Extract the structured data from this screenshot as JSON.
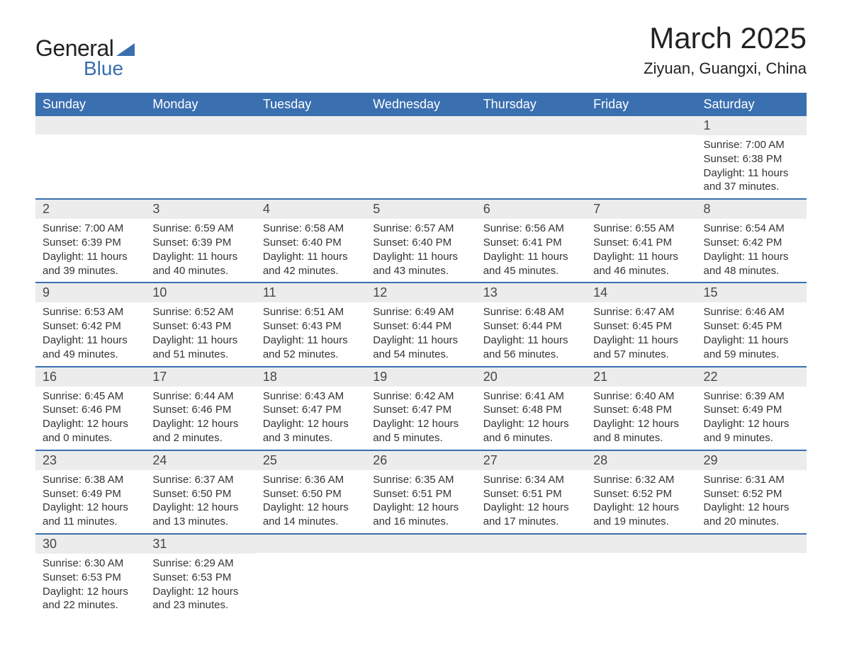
{
  "logo": {
    "text1": "General",
    "text2": "Blue",
    "shape_color": "#3a6fb0"
  },
  "title": "March 2025",
  "location": "Ziyuan, Guangxi, China",
  "colors": {
    "header_bg": "#3a6fb0",
    "header_text": "#ffffff",
    "daynum_bg": "#ececec",
    "daynum_text": "#474747",
    "body_text": "#333333",
    "row_border": "#3a6fb0"
  },
  "day_headers": [
    "Sunday",
    "Monday",
    "Tuesday",
    "Wednesday",
    "Thursday",
    "Friday",
    "Saturday"
  ],
  "weeks": [
    [
      {
        "n": "",
        "sr": "",
        "ss": "",
        "d1": "",
        "d2": ""
      },
      {
        "n": "",
        "sr": "",
        "ss": "",
        "d1": "",
        "d2": ""
      },
      {
        "n": "",
        "sr": "",
        "ss": "",
        "d1": "",
        "d2": ""
      },
      {
        "n": "",
        "sr": "",
        "ss": "",
        "d1": "",
        "d2": ""
      },
      {
        "n": "",
        "sr": "",
        "ss": "",
        "d1": "",
        "d2": ""
      },
      {
        "n": "",
        "sr": "",
        "ss": "",
        "d1": "",
        "d2": ""
      },
      {
        "n": "1",
        "sr": "Sunrise: 7:00 AM",
        "ss": "Sunset: 6:38 PM",
        "d1": "Daylight: 11 hours",
        "d2": "and 37 minutes."
      }
    ],
    [
      {
        "n": "2",
        "sr": "Sunrise: 7:00 AM",
        "ss": "Sunset: 6:39 PM",
        "d1": "Daylight: 11 hours",
        "d2": "and 39 minutes."
      },
      {
        "n": "3",
        "sr": "Sunrise: 6:59 AM",
        "ss": "Sunset: 6:39 PM",
        "d1": "Daylight: 11 hours",
        "d2": "and 40 minutes."
      },
      {
        "n": "4",
        "sr": "Sunrise: 6:58 AM",
        "ss": "Sunset: 6:40 PM",
        "d1": "Daylight: 11 hours",
        "d2": "and 42 minutes."
      },
      {
        "n": "5",
        "sr": "Sunrise: 6:57 AM",
        "ss": "Sunset: 6:40 PM",
        "d1": "Daylight: 11 hours",
        "d2": "and 43 minutes."
      },
      {
        "n": "6",
        "sr": "Sunrise: 6:56 AM",
        "ss": "Sunset: 6:41 PM",
        "d1": "Daylight: 11 hours",
        "d2": "and 45 minutes."
      },
      {
        "n": "7",
        "sr": "Sunrise: 6:55 AM",
        "ss": "Sunset: 6:41 PM",
        "d1": "Daylight: 11 hours",
        "d2": "and 46 minutes."
      },
      {
        "n": "8",
        "sr": "Sunrise: 6:54 AM",
        "ss": "Sunset: 6:42 PM",
        "d1": "Daylight: 11 hours",
        "d2": "and 48 minutes."
      }
    ],
    [
      {
        "n": "9",
        "sr": "Sunrise: 6:53 AM",
        "ss": "Sunset: 6:42 PM",
        "d1": "Daylight: 11 hours",
        "d2": "and 49 minutes."
      },
      {
        "n": "10",
        "sr": "Sunrise: 6:52 AM",
        "ss": "Sunset: 6:43 PM",
        "d1": "Daylight: 11 hours",
        "d2": "and 51 minutes."
      },
      {
        "n": "11",
        "sr": "Sunrise: 6:51 AM",
        "ss": "Sunset: 6:43 PM",
        "d1": "Daylight: 11 hours",
        "d2": "and 52 minutes."
      },
      {
        "n": "12",
        "sr": "Sunrise: 6:49 AM",
        "ss": "Sunset: 6:44 PM",
        "d1": "Daylight: 11 hours",
        "d2": "and 54 minutes."
      },
      {
        "n": "13",
        "sr": "Sunrise: 6:48 AM",
        "ss": "Sunset: 6:44 PM",
        "d1": "Daylight: 11 hours",
        "d2": "and 56 minutes."
      },
      {
        "n": "14",
        "sr": "Sunrise: 6:47 AM",
        "ss": "Sunset: 6:45 PM",
        "d1": "Daylight: 11 hours",
        "d2": "and 57 minutes."
      },
      {
        "n": "15",
        "sr": "Sunrise: 6:46 AM",
        "ss": "Sunset: 6:45 PM",
        "d1": "Daylight: 11 hours",
        "d2": "and 59 minutes."
      }
    ],
    [
      {
        "n": "16",
        "sr": "Sunrise: 6:45 AM",
        "ss": "Sunset: 6:46 PM",
        "d1": "Daylight: 12 hours",
        "d2": "and 0 minutes."
      },
      {
        "n": "17",
        "sr": "Sunrise: 6:44 AM",
        "ss": "Sunset: 6:46 PM",
        "d1": "Daylight: 12 hours",
        "d2": "and 2 minutes."
      },
      {
        "n": "18",
        "sr": "Sunrise: 6:43 AM",
        "ss": "Sunset: 6:47 PM",
        "d1": "Daylight: 12 hours",
        "d2": "and 3 minutes."
      },
      {
        "n": "19",
        "sr": "Sunrise: 6:42 AM",
        "ss": "Sunset: 6:47 PM",
        "d1": "Daylight: 12 hours",
        "d2": "and 5 minutes."
      },
      {
        "n": "20",
        "sr": "Sunrise: 6:41 AM",
        "ss": "Sunset: 6:48 PM",
        "d1": "Daylight: 12 hours",
        "d2": "and 6 minutes."
      },
      {
        "n": "21",
        "sr": "Sunrise: 6:40 AM",
        "ss": "Sunset: 6:48 PM",
        "d1": "Daylight: 12 hours",
        "d2": "and 8 minutes."
      },
      {
        "n": "22",
        "sr": "Sunrise: 6:39 AM",
        "ss": "Sunset: 6:49 PM",
        "d1": "Daylight: 12 hours",
        "d2": "and 9 minutes."
      }
    ],
    [
      {
        "n": "23",
        "sr": "Sunrise: 6:38 AM",
        "ss": "Sunset: 6:49 PM",
        "d1": "Daylight: 12 hours",
        "d2": "and 11 minutes."
      },
      {
        "n": "24",
        "sr": "Sunrise: 6:37 AM",
        "ss": "Sunset: 6:50 PM",
        "d1": "Daylight: 12 hours",
        "d2": "and 13 minutes."
      },
      {
        "n": "25",
        "sr": "Sunrise: 6:36 AM",
        "ss": "Sunset: 6:50 PM",
        "d1": "Daylight: 12 hours",
        "d2": "and 14 minutes."
      },
      {
        "n": "26",
        "sr": "Sunrise: 6:35 AM",
        "ss": "Sunset: 6:51 PM",
        "d1": "Daylight: 12 hours",
        "d2": "and 16 minutes."
      },
      {
        "n": "27",
        "sr": "Sunrise: 6:34 AM",
        "ss": "Sunset: 6:51 PM",
        "d1": "Daylight: 12 hours",
        "d2": "and 17 minutes."
      },
      {
        "n": "28",
        "sr": "Sunrise: 6:32 AM",
        "ss": "Sunset: 6:52 PM",
        "d1": "Daylight: 12 hours",
        "d2": "and 19 minutes."
      },
      {
        "n": "29",
        "sr": "Sunrise: 6:31 AM",
        "ss": "Sunset: 6:52 PM",
        "d1": "Daylight: 12 hours",
        "d2": "and 20 minutes."
      }
    ],
    [
      {
        "n": "30",
        "sr": "Sunrise: 6:30 AM",
        "ss": "Sunset: 6:53 PM",
        "d1": "Daylight: 12 hours",
        "d2": "and 22 minutes."
      },
      {
        "n": "31",
        "sr": "Sunrise: 6:29 AM",
        "ss": "Sunset: 6:53 PM",
        "d1": "Daylight: 12 hours",
        "d2": "and 23 minutes."
      },
      {
        "n": "",
        "sr": "",
        "ss": "",
        "d1": "",
        "d2": ""
      },
      {
        "n": "",
        "sr": "",
        "ss": "",
        "d1": "",
        "d2": ""
      },
      {
        "n": "",
        "sr": "",
        "ss": "",
        "d1": "",
        "d2": ""
      },
      {
        "n": "",
        "sr": "",
        "ss": "",
        "d1": "",
        "d2": ""
      },
      {
        "n": "",
        "sr": "",
        "ss": "",
        "d1": "",
        "d2": ""
      }
    ]
  ]
}
